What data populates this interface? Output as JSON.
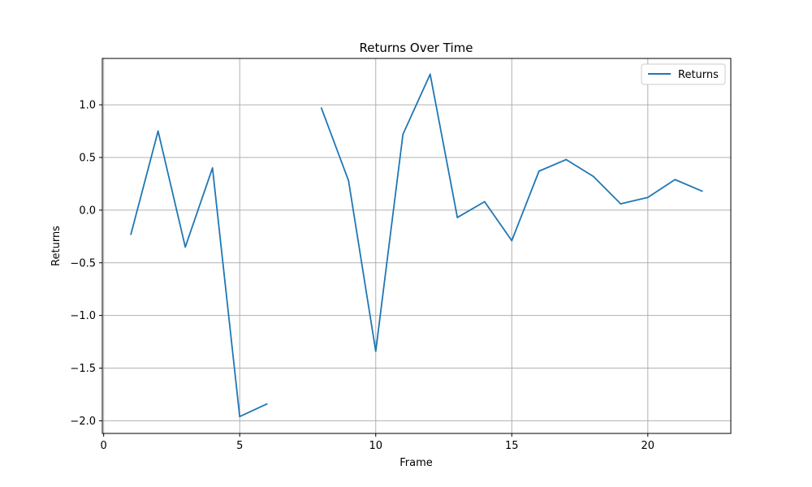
{
  "chart_data": {
    "type": "line",
    "title": "Returns Over Time",
    "xlabel": "Frame",
    "ylabel": "Returns",
    "xlim": [
      -0.05,
      23.05
    ],
    "ylim": [
      -2.12,
      1.44
    ],
    "x_ticks": [
      0,
      5,
      10,
      15,
      20
    ],
    "x_tick_labels": [
      "0",
      "5",
      "10",
      "15",
      "20"
    ],
    "y_ticks": [
      -2.0,
      -1.5,
      -1.0,
      -0.5,
      0.0,
      0.5,
      1.0
    ],
    "y_tick_labels": [
      "−2.0",
      "−1.5",
      "−1.0",
      "−0.5",
      "0.0",
      "0.5",
      "1.0"
    ],
    "grid": true,
    "legend_position": "top-right",
    "series": [
      {
        "name": "Returns",
        "color": "#1f77b4",
        "x": [
          1,
          2,
          3,
          4,
          5,
          6,
          7,
          8,
          9,
          10,
          11,
          12,
          13,
          14,
          15,
          16,
          17,
          18,
          19,
          20,
          21,
          22
        ],
        "y": [
          -0.23,
          0.75,
          -0.35,
          0.4,
          -1.96,
          -1.84,
          null,
          0.97,
          0.28,
          -1.34,
          0.72,
          1.29,
          -0.07,
          0.08,
          -0.29,
          0.37,
          0.48,
          0.32,
          0.06,
          0.12,
          0.29,
          0.18
        ]
      }
    ]
  }
}
